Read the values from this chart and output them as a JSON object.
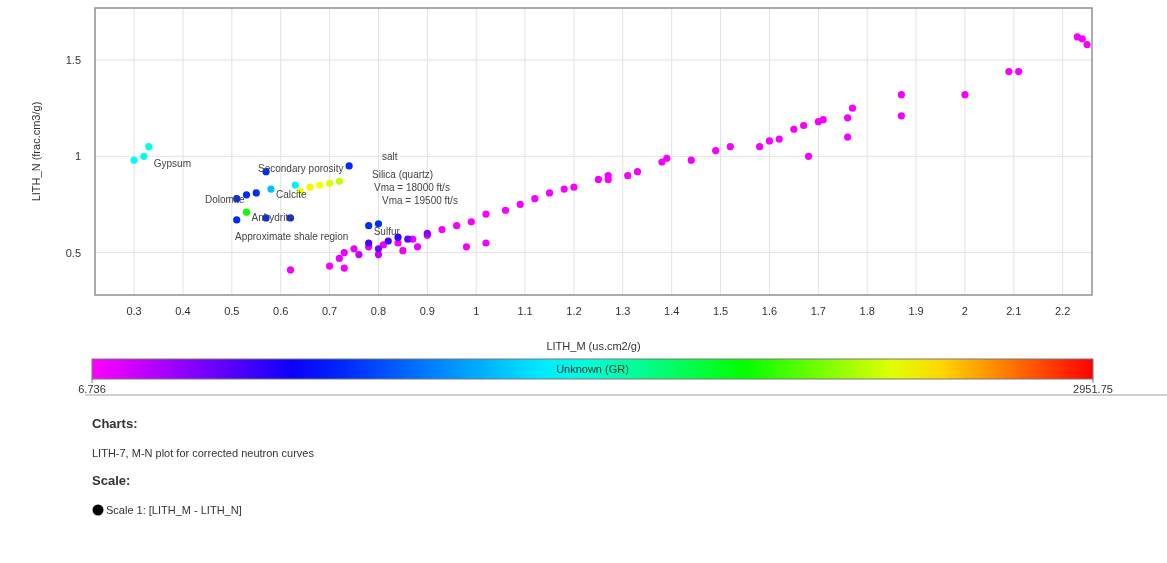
{
  "chart_data": {
    "type": "scatter",
    "xlabel": "LITH_M (us.cm2/g)",
    "ylabel": "LITH_N (frac.cm3/g)",
    "clabel": "Unknown (GR)",
    "xlim": [
      0.22,
      2.26
    ],
    "ylim": [
      0.28,
      1.77
    ],
    "xticks": [
      0.3,
      0.4,
      0.5,
      0.6,
      0.7,
      0.8,
      0.9,
      1,
      1.1,
      1.2,
      1.3,
      1.4,
      1.5,
      1.6,
      1.7,
      1.8,
      1.9,
      2,
      2.1,
      2.2
    ],
    "yticks": [
      0.5,
      1,
      1.5
    ],
    "clim": [
      6.736,
      2951.75
    ],
    "cticks": [
      6.736,
      2951.75
    ],
    "grid": true,
    "marker": "circle",
    "series": [
      {
        "x": [
          2.23,
          2.24,
          2.25,
          2.09,
          2.11,
          2.0,
          1.87,
          1.87,
          1.77,
          1.76,
          1.76,
          1.68,
          1.71,
          1.7,
          1.67,
          1.65,
          1.62,
          1.6,
          1.58,
          1.52,
          1.49,
          1.44,
          1.39,
          1.38,
          1.33,
          1.31,
          1.27,
          1.27,
          1.25,
          1.2,
          1.18,
          1.15,
          1.12,
          1.09,
          1.06,
          1.02,
          0.99,
          0.96,
          0.93,
          0.9,
          0.87,
          0.84,
          0.81,
          0.78,
          0.75,
          0.73,
          0.98,
          1.02,
          0.62,
          0.7,
          0.73,
          0.72,
          0.76,
          0.8,
          0.85,
          0.88,
          0.78,
          0.82,
          0.86,
          0.9,
          0.84,
          0.8,
          0.33,
          0.32,
          0.3,
          0.57,
          0.74,
          0.51,
          0.53,
          0.51,
          0.57,
          0.62,
          0.78,
          0.8,
          0.63,
          0.64,
          0.66,
          0.68,
          0.7,
          0.72,
          0.53,
          0.55,
          0.58
        ],
        "values": [
          1.62,
          1.61,
          1.58,
          1.44,
          1.44,
          1.32,
          1.32,
          1.21,
          1.25,
          1.2,
          1.1,
          1.0,
          1.19,
          1.18,
          1.16,
          1.14,
          1.09,
          1.08,
          1.05,
          1.05,
          1.03,
          0.98,
          0.99,
          0.97,
          0.92,
          0.9,
          0.9,
          0.88,
          0.88,
          0.84,
          0.83,
          0.81,
          0.78,
          0.75,
          0.72,
          0.7,
          0.66,
          0.64,
          0.62,
          0.59,
          0.57,
          0.55,
          0.54,
          0.53,
          0.52,
          0.5,
          0.53,
          0.55,
          0.41,
          0.43,
          0.42,
          0.47,
          0.49,
          0.49,
          0.51,
          0.53,
          0.55,
          0.56,
          0.57,
          0.6,
          0.58,
          0.52,
          1.05,
          1.0,
          0.98,
          0.92,
          0.95,
          0.78,
          0.71,
          0.67,
          0.68,
          0.68,
          0.64,
          0.65,
          0.85,
          0.82,
          0.84,
          0.85,
          0.86,
          0.87,
          0.8,
          0.81,
          0.83
        ],
        "cvalues": [
          30,
          30,
          30,
          30,
          30,
          30,
          30,
          30,
          30,
          30,
          30,
          30,
          30,
          30,
          30,
          30,
          30,
          30,
          30,
          30,
          30,
          30,
          30,
          30,
          30,
          30,
          30,
          30,
          30,
          30,
          30,
          30,
          30,
          30,
          30,
          30,
          30,
          30,
          30,
          30,
          30,
          30,
          60,
          80,
          60,
          60,
          30,
          30,
          30,
          30,
          30,
          60,
          150,
          150,
          60,
          60,
          450,
          450,
          400,
          300,
          500,
          350,
          1450,
          1450,
          1400,
          750,
          750,
          750,
          1950,
          750,
          750,
          750,
          750,
          750,
          1350,
          2400,
          2450,
          2400,
          2350,
          2300,
          750,
          750,
          1200
        ]
      }
    ],
    "annotations": [
      {
        "text": "Gypsum",
        "x": 0.33,
        "y": 0.99
      },
      {
        "text": "Calcite",
        "x": 0.58,
        "y": 0.83
      },
      {
        "text": "Anhydrite",
        "x": 0.53,
        "y": 0.71
      },
      {
        "text": "Sulfur",
        "x": 0.78,
        "y": 0.64
      },
      "Secondary porosity",
      "salt",
      "Dolomite",
      "Silica (quartz)",
      "Vma = 18000 ft/s",
      "Vma = 19500 ft/s",
      "Approximate shale region",
      "Charts:",
      "LITH-7, M-N plot for corrected neutron curves",
      "Scale:",
      "Scale 1:  [LITH_M - LITH_N]"
    ]
  }
}
